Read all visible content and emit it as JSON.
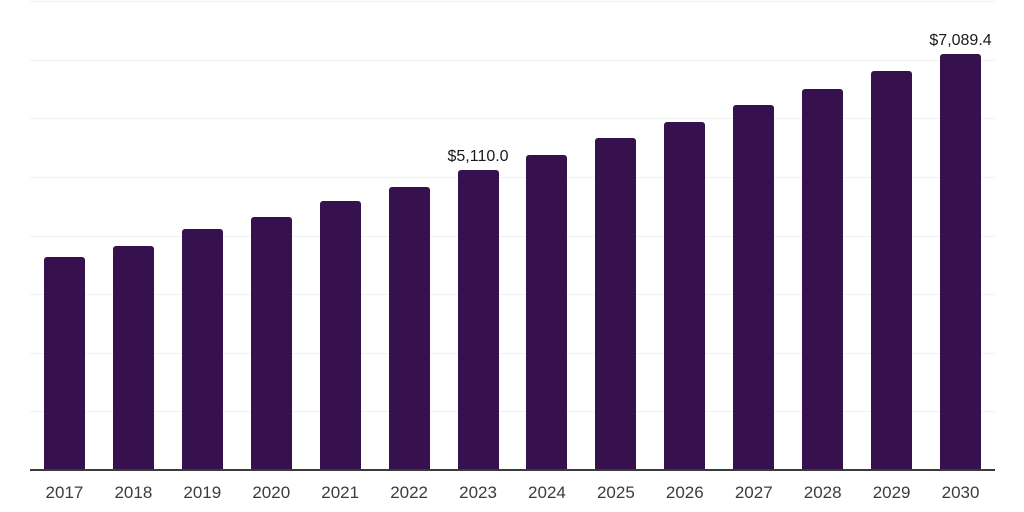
{
  "chart_data": {
    "type": "bar",
    "title": "",
    "xlabel": "",
    "ylabel": "",
    "categories": [
      "2017",
      "2018",
      "2019",
      "2020",
      "2021",
      "2022",
      "2023",
      "2024",
      "2025",
      "2026",
      "2027",
      "2028",
      "2029",
      "2030"
    ],
    "values": [
      3630,
      3820,
      4105,
      4320,
      4585,
      4835,
      5110.0,
      5375,
      5660,
      5940,
      6220,
      6505,
      6805,
      7089.4
    ],
    "labeled_points": [
      {
        "index": 6,
        "text": "$5,110.0"
      },
      {
        "index": 13,
        "text": "$7,089.4"
      }
    ],
    "ylim": [
      0,
      8000
    ],
    "gridline_step": 1000,
    "grid": true,
    "legend_position": "none",
    "y_axis_tick_labels_visible": false,
    "colors": {
      "bar": "#36114D",
      "axis": "#3a3a3a",
      "gridline": "#f1f1f1",
      "data_label": "#1a1a1a",
      "tick_label": "#3c3c3c",
      "background": "#ffffff"
    }
  }
}
